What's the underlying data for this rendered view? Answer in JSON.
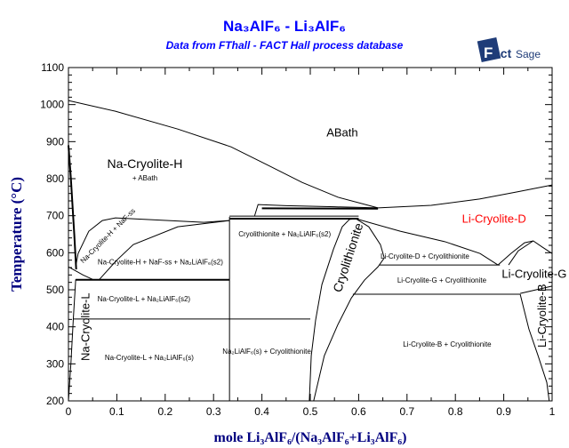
{
  "title": "Na₃AlF₆ - Li₃AlF₆",
  "subtitle": "Data from FThall - FACT Hall process database",
  "logo_text": "FactSage™",
  "colors": {
    "title": "#0000ff",
    "axis_label": "#000080",
    "highlight_label": "#ff0000",
    "line": "#000000"
  },
  "chart_data": {
    "type": "line",
    "title": "Na₃AlF₆ - Li₃AlF₆",
    "xlabel": "mole Li₃AlF₆/(Na₃AlF₆+Li₃AlF₆)",
    "ylabel": "Temperature (°C)",
    "xlim": [
      0,
      1
    ],
    "ylim": [
      200,
      1100
    ],
    "xticks": [
      "0",
      "0.1",
      "0.2",
      "0.3",
      "0.4",
      "0.5",
      "0.6",
      "0.7",
      "0.8",
      "0.9",
      "1"
    ],
    "yticks": [
      "200",
      "300",
      "400",
      "500",
      "600",
      "700",
      "800",
      "900",
      "1000",
      "1100"
    ],
    "grid": false,
    "lines": [
      {
        "w": 1,
        "pts": [
          [
            0,
            1011
          ],
          [
            0.097,
            982
          ],
          [
            0.226,
            934
          ],
          [
            0.336,
            886
          ],
          [
            0.41,
            838
          ],
          [
            0.483,
            790
          ],
          [
            0.557,
            750
          ],
          [
            0.64,
            721
          ]
        ]
      },
      {
        "w": 1,
        "pts": [
          [
            0.64,
            721
          ],
          [
            0.75,
            728
          ],
          [
            0.85,
            745
          ],
          [
            0.93,
            765
          ],
          [
            1,
            783
          ]
        ]
      },
      {
        "w": 1,
        "pts": [
          [
            0.385,
            700
          ],
          [
            0.392,
            730
          ],
          [
            0.45,
            727
          ],
          [
            0.55,
            724
          ],
          [
            0.64,
            721
          ]
        ]
      },
      {
        "w": 2,
        "pts": [
          [
            0.4,
            720
          ],
          [
            0.64,
            719
          ]
        ]
      },
      {
        "w": 2,
        "pts": [
          [
            0,
            890
          ],
          [
            0.005,
            800
          ],
          [
            0.012,
            650
          ],
          [
            0.016,
            555
          ]
        ]
      },
      {
        "w": 1,
        "pts": [
          [
            0,
            562
          ],
          [
            0.03,
            540
          ],
          [
            0.05,
            528
          ]
        ]
      },
      {
        "w": 1,
        "pts": [
          [
            0.016,
            570
          ],
          [
            0.02,
            598
          ],
          [
            0.042,
            658
          ],
          [
            0.07,
            687
          ],
          [
            0.097,
            694
          ],
          [
            0.28,
            682
          ],
          [
            0.333,
            687
          ]
        ]
      },
      {
        "w": 1,
        "pts": [
          [
            0.064,
            528
          ],
          [
            0.1,
            580
          ],
          [
            0.134,
            622
          ],
          [
            0.226,
            670
          ],
          [
            0.333,
            687
          ]
        ]
      },
      {
        "w": 1,
        "pts": [
          [
            0,
            200
          ],
          [
            0.005,
            300
          ],
          [
            0.01,
            420
          ],
          [
            0.015,
            528
          ]
        ]
      },
      {
        "w": 2,
        "pts": [
          [
            0.015,
            527
          ],
          [
            0.333,
            527
          ]
        ]
      },
      {
        "w": 1,
        "pts": [
          [
            0.01,
            421
          ],
          [
            0.5,
            421
          ]
        ]
      },
      {
        "w": 1,
        "pts": [
          [
            0.333,
            200
          ],
          [
            0.333,
            697
          ]
        ]
      },
      {
        "w": 2,
        "pts": [
          [
            0.333,
            692
          ],
          [
            0.6,
            692
          ]
        ]
      },
      {
        "w": 1,
        "pts": [
          [
            0.333,
            699
          ],
          [
            0.6,
            699
          ]
        ]
      },
      {
        "w": 1,
        "pts": [
          [
            0.498,
            200
          ],
          [
            0.502,
            322
          ],
          [
            0.511,
            418
          ],
          [
            0.524,
            514
          ],
          [
            0.548,
            610
          ],
          [
            0.566,
            670
          ],
          [
            0.581,
            690
          ],
          [
            0.594,
            692
          ],
          [
            0.621,
            670
          ],
          [
            0.645,
            622
          ],
          [
            0.653,
            586
          ],
          [
            0.64,
            562
          ],
          [
            0.612,
            526
          ],
          [
            0.585,
            478
          ],
          [
            0.557,
            406
          ],
          [
            0.529,
            322
          ],
          [
            0.507,
            200
          ]
        ]
      },
      {
        "w": 1,
        "pts": [
          [
            0.643,
            567
          ],
          [
            0.892,
            567
          ]
        ]
      },
      {
        "w": 1,
        "pts": [
          [
            0.588,
            488
          ],
          [
            0.934,
            488
          ]
        ]
      },
      {
        "w": 1,
        "pts": [
          [
            0.594,
            692
          ],
          [
            0.686,
            658
          ],
          [
            0.778,
            630
          ],
          [
            0.851,
            598
          ],
          [
            0.888,
            567
          ]
        ]
      },
      {
        "w": 1,
        "pts": [
          [
            0.888,
            567
          ],
          [
            0.915,
            598
          ],
          [
            0.943,
            627
          ],
          [
            0.961,
            632
          ],
          [
            0.98,
            615
          ],
          [
            1,
            598
          ]
        ]
      },
      {
        "w": 1,
        "pts": [
          [
            0.91,
            567
          ],
          [
            0.93,
            605
          ],
          [
            0.961,
            632
          ]
        ]
      },
      {
        "w": 1,
        "pts": [
          [
            0.934,
            488
          ],
          [
            0.952,
            394
          ],
          [
            0.971,
            322
          ],
          [
            0.989,
            250
          ],
          [
            0.994,
            200
          ]
        ]
      },
      {
        "w": 1,
        "pts": [
          [
            0.934,
            490
          ],
          [
            1,
            510
          ]
        ]
      }
    ],
    "annotations": [
      {
        "text": "ABath",
        "x": 0.566,
        "t": 922,
        "size": 13,
        "rot": 0
      },
      {
        "text": "Na-Cryolite-H",
        "x": 0.158,
        "t": 838,
        "size": 14,
        "rot": 0
      },
      {
        "text": "+ ABath",
        "x": 0.158,
        "t": 800,
        "size": 8,
        "rot": 0
      },
      {
        "text": "Na-Cryolite-H + NaF-ss",
        "x": 0.082,
        "t": 645,
        "size": 8,
        "rot": -45
      },
      {
        "text": "Na-Cryolite-H + NaF-ss + Na₂LiAlF₆(s2)",
        "x": 0.19,
        "t": 574,
        "size": 8,
        "rot": 0
      },
      {
        "text": "Cryolithionite + Na₂LiAlF₆(s2)",
        "x": 0.447,
        "t": 649,
        "size": 8,
        "rot": 0
      },
      {
        "text": "Na-Cryolite-L + Na₂LiAlF₆(s2)",
        "x": 0.156,
        "t": 474,
        "size": 8,
        "rot": 0
      },
      {
        "text": "Na-Cryolite-L + Na₂LiAlF₆(s)",
        "x": 0.167,
        "t": 315,
        "size": 8,
        "rot": 0
      },
      {
        "text": "Na-Cryolite-L",
        "x": 0.037,
        "t": 400,
        "size": 13,
        "rot": -90
      },
      {
        "text": "Na₂LiAlF₆(s) + Cryolithionite",
        "x": 0.41,
        "t": 332,
        "size": 8,
        "rot": 0
      },
      {
        "text": "Cryolithionite",
        "x": 0.58,
        "t": 586,
        "size": 14,
        "rot": -72
      },
      {
        "text": "Li-Cryolite-D",
        "x": 0.88,
        "t": 690,
        "size": 13,
        "rot": 0,
        "color": "#ff0000"
      },
      {
        "text": "Li-Cryolite-D + Cryolithionite",
        "x": 0.737,
        "t": 589,
        "size": 8,
        "rot": 0
      },
      {
        "text": "Li-Cryolite-G + Cryolithionite",
        "x": 0.772,
        "t": 524,
        "size": 8,
        "rot": 0
      },
      {
        "text": "Li-Cryolite-G",
        "x": 0.963,
        "t": 541,
        "size": 13,
        "rot": 0
      },
      {
        "text": "Li-Cryolite-B + Cryolithionite",
        "x": 0.783,
        "t": 351,
        "size": 8,
        "rot": 0
      },
      {
        "text": "Li-Cryolite-B",
        "x": 0.981,
        "t": 430,
        "size": 13,
        "rot": -90
      }
    ]
  }
}
